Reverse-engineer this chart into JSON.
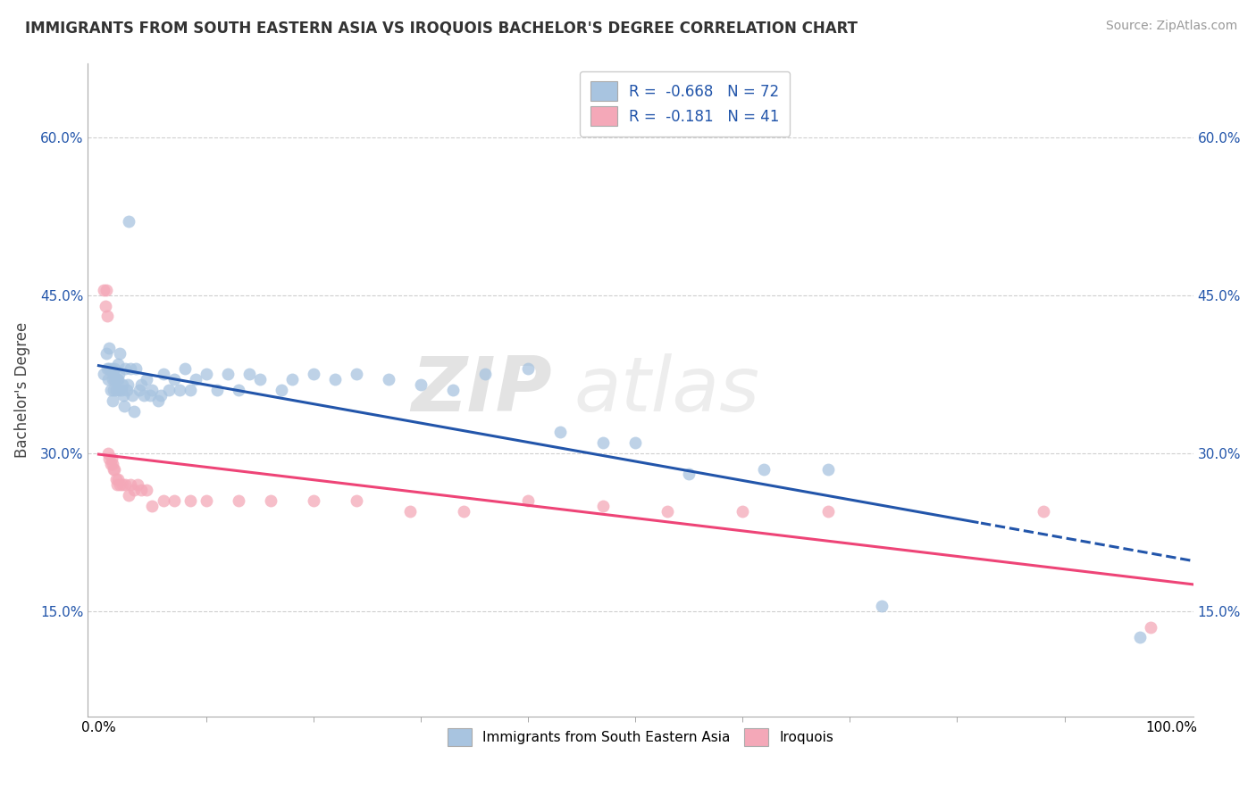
{
  "title": "IMMIGRANTS FROM SOUTH EASTERN ASIA VS IROQUOIS BACHELOR'S DEGREE CORRELATION CHART",
  "source": "Source: ZipAtlas.com",
  "ylabel": "Bachelor's Degree",
  "legend_blue_label": "Immigrants from South Eastern Asia",
  "legend_pink_label": "Iroquois",
  "r_blue": -0.668,
  "n_blue": 72,
  "r_pink": -0.181,
  "n_pink": 41,
  "blue_color": "#A8C4E0",
  "pink_color": "#F4A8B8",
  "blue_line_color": "#2255AA",
  "pink_line_color": "#EE4477",
  "background_color": "#FFFFFF",
  "grid_color": "#BBBBBB",
  "watermark_zip": "ZIP",
  "watermark_atlas": "atlas",
  "blue_scatter_x": [
    0.005,
    0.007,
    0.008,
    0.009,
    0.01,
    0.01,
    0.011,
    0.012,
    0.013,
    0.013,
    0.014,
    0.014,
    0.015,
    0.015,
    0.016,
    0.017,
    0.018,
    0.018,
    0.019,
    0.019,
    0.02,
    0.021,
    0.022,
    0.023,
    0.024,
    0.025,
    0.026,
    0.027,
    0.028,
    0.03,
    0.031,
    0.033,
    0.035,
    0.038,
    0.04,
    0.042,
    0.045,
    0.048,
    0.05,
    0.055,
    0.058,
    0.06,
    0.065,
    0.07,
    0.075,
    0.08,
    0.085,
    0.09,
    0.1,
    0.11,
    0.12,
    0.13,
    0.14,
    0.15,
    0.17,
    0.18,
    0.2,
    0.22,
    0.24,
    0.27,
    0.3,
    0.33,
    0.36,
    0.4,
    0.43,
    0.47,
    0.5,
    0.55,
    0.62,
    0.68,
    0.73,
    0.97
  ],
  "blue_scatter_y": [
    0.375,
    0.395,
    0.38,
    0.37,
    0.4,
    0.38,
    0.36,
    0.38,
    0.37,
    0.35,
    0.375,
    0.36,
    0.38,
    0.37,
    0.36,
    0.37,
    0.385,
    0.37,
    0.375,
    0.36,
    0.395,
    0.36,
    0.365,
    0.355,
    0.345,
    0.38,
    0.36,
    0.365,
    0.52,
    0.38,
    0.355,
    0.34,
    0.38,
    0.36,
    0.365,
    0.355,
    0.37,
    0.355,
    0.36,
    0.35,
    0.355,
    0.375,
    0.36,
    0.37,
    0.36,
    0.38,
    0.36,
    0.37,
    0.375,
    0.36,
    0.375,
    0.36,
    0.375,
    0.37,
    0.36,
    0.37,
    0.375,
    0.37,
    0.375,
    0.37,
    0.365,
    0.36,
    0.375,
    0.38,
    0.32,
    0.31,
    0.31,
    0.28,
    0.285,
    0.285,
    0.155,
    0.125
  ],
  "pink_scatter_x": [
    0.005,
    0.006,
    0.007,
    0.008,
    0.009,
    0.01,
    0.011,
    0.012,
    0.013,
    0.014,
    0.015,
    0.016,
    0.017,
    0.018,
    0.02,
    0.022,
    0.025,
    0.028,
    0.03,
    0.033,
    0.036,
    0.04,
    0.045,
    0.05,
    0.06,
    0.07,
    0.085,
    0.1,
    0.13,
    0.16,
    0.2,
    0.24,
    0.29,
    0.34,
    0.4,
    0.47,
    0.53,
    0.6,
    0.68,
    0.88,
    0.98
  ],
  "pink_scatter_y": [
    0.455,
    0.44,
    0.455,
    0.43,
    0.3,
    0.295,
    0.29,
    0.295,
    0.29,
    0.285,
    0.285,
    0.275,
    0.27,
    0.275,
    0.27,
    0.27,
    0.27,
    0.26,
    0.27,
    0.265,
    0.27,
    0.265,
    0.265,
    0.25,
    0.255,
    0.255,
    0.255,
    0.255,
    0.255,
    0.255,
    0.255,
    0.255,
    0.245,
    0.245,
    0.255,
    0.25,
    0.245,
    0.245,
    0.245,
    0.245,
    0.135
  ],
  "y_ticks": [
    0.15,
    0.3,
    0.45,
    0.6
  ],
  "y_tick_labels": [
    "15.0%",
    "30.0%",
    "45.0%",
    "60.0%"
  ],
  "ylim_min": 0.05,
  "ylim_max": 0.67,
  "xlim_min": -0.01,
  "xlim_max": 1.02,
  "blue_line_x_solid_end": 0.82,
  "title_fontsize": 12,
  "source_fontsize": 10
}
